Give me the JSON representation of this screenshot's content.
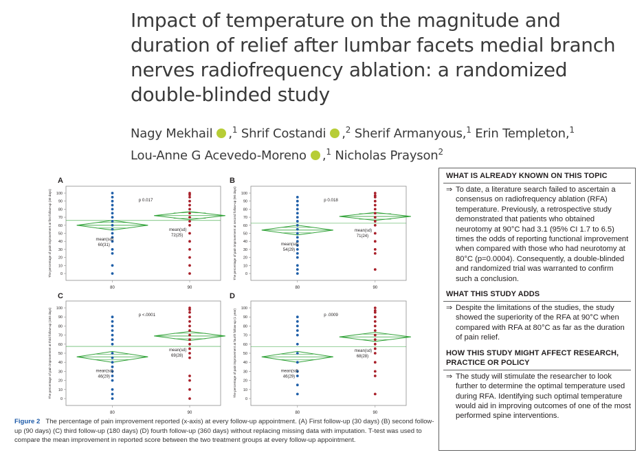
{
  "title": {
    "lines": [
      "Impact of temperature on the magnitude and",
      "duration of relief after lumbar facets medial branch",
      "nerves radiofrequency ablation: a randomized",
      "double-blinded study"
    ]
  },
  "authors": {
    "a1": "Nagy Mekhail",
    "a1_aff": "1",
    "a2": "Shrif Costandi",
    "a2_aff": "2",
    "a3": "Sherif Armanyous,",
    "a3_aff": "1",
    "a4": "Erin Templeton,",
    "a4_aff": "1",
    "a5": "Lou-Anne G Acevedo-Moreno",
    "a5_aff": "1",
    "a6": "Nicholas Prayson",
    "a6_aff": "2",
    "sep": ","
  },
  "chart_data": [
    {
      "panel": "A",
      "type": "scatter",
      "ylabel": "The percentage of pain improvement at first follow-up (30 days)",
      "categories": [
        "80",
        "90"
      ],
      "ylim": [
        0,
        100
      ],
      "yticks": [
        "0",
        "10",
        "20",
        "30",
        "40",
        "50",
        "60",
        "70",
        "80",
        "90",
        "100"
      ],
      "pvalue": "p 0.017",
      "groups": [
        {
          "name": "80",
          "color": "#1f5fa8",
          "mean": 60,
          "ci": [
            54,
            66
          ],
          "label_head": "mean(sd)",
          "label_val": "60(31)",
          "points": [
            100,
            95,
            90,
            85,
            80,
            75,
            70,
            65,
            60,
            55,
            50,
            45,
            40,
            30,
            25,
            10,
            0
          ]
        },
        {
          "name": "90",
          "color": "#a8202a",
          "mean": 72,
          "ci": [
            67,
            77
          ],
          "label_head": "mean(sd)",
          "label_val": "72(25)",
          "points": [
            100,
            98,
            95,
            90,
            85,
            80,
            75,
            70,
            65,
            60,
            50,
            40,
            30,
            20,
            10,
            0
          ]
        }
      ]
    },
    {
      "panel": "B",
      "type": "scatter",
      "ylabel": "The percentage of pain improvement at second follow-up (90 days)",
      "categories": [
        "80",
        "90"
      ],
      "ylim": [
        0,
        100
      ],
      "yticks": [
        "0",
        "10",
        "20",
        "30",
        "40",
        "50",
        "60",
        "70",
        "80",
        "90",
        "100"
      ],
      "pvalue": "p 0.018",
      "groups": [
        {
          "name": "80",
          "color": "#1f5fa8",
          "mean": 54,
          "ci": [
            48,
            60
          ],
          "label_head": "mean(sd)",
          "label_val": "54(29)",
          "points": [
            95,
            90,
            85,
            80,
            75,
            70,
            65,
            60,
            55,
            50,
            45,
            40,
            35,
            30,
            25,
            20,
            10,
            5,
            0
          ]
        },
        {
          "name": "90",
          "color": "#a8202a",
          "mean": 71,
          "ci": [
            66,
            76
          ],
          "label_head": "mean(sd)",
          "label_val": "71(24)",
          "points": [
            100,
            97,
            95,
            90,
            85,
            80,
            75,
            70,
            65,
            60,
            50,
            40,
            30,
            25,
            5
          ]
        }
      ]
    },
    {
      "panel": "C",
      "type": "scatter",
      "ylabel": "The percentage of pain improvement at third follow-up (180 days)",
      "categories": [
        "80",
        "90"
      ],
      "ylim": [
        0,
        100
      ],
      "yticks": [
        "0",
        "10",
        "20",
        "30",
        "40",
        "50",
        "60",
        "70",
        "80",
        "90",
        "100"
      ],
      "pvalue": "p <.0001",
      "groups": [
        {
          "name": "80",
          "color": "#1f5fa8",
          "mean": 46,
          "ci": [
            40,
            52
          ],
          "label_head": "mean(sd)",
          "label_val": "46(29)",
          "points": [
            90,
            85,
            80,
            75,
            70,
            65,
            60,
            50,
            45,
            40,
            35,
            30,
            25,
            20,
            10,
            5,
            0
          ]
        },
        {
          "name": "90",
          "color": "#a8202a",
          "mean": 69,
          "ci": [
            64,
            74
          ],
          "label_head": "mean(sd)",
          "label_val": "69(28)",
          "points": [
            100,
            98,
            95,
            90,
            85,
            80,
            75,
            70,
            65,
            60,
            55,
            50,
            45,
            25,
            20,
            10,
            0
          ]
        }
      ]
    },
    {
      "panel": "D",
      "type": "scatter",
      "ylabel": "The percentage of pain improvement at fourth follow-up (1 year)",
      "categories": [
        "80",
        "90"
      ],
      "ylim": [
        0,
        100
      ],
      "yticks": [
        "0",
        "10",
        "20",
        "30",
        "40",
        "50",
        "60",
        "70",
        "80",
        "90",
        "100"
      ],
      "pvalue": "p .0009",
      "groups": [
        {
          "name": "80",
          "color": "#1f5fa8",
          "mean": 46,
          "ci": [
            40,
            52
          ],
          "label_head": "mean(sd)",
          "label_val": "46(29)",
          "points": [
            90,
            85,
            80,
            75,
            70,
            60,
            50,
            40,
            30,
            25,
            15,
            5
          ]
        },
        {
          "name": "90",
          "color": "#a8202a",
          "mean": 68,
          "ci": [
            63,
            73
          ],
          "label_head": "mean(sd)",
          "label_val": "68(28)",
          "points": [
            100,
            97,
            95,
            90,
            85,
            80,
            75,
            70,
            65,
            60,
            55,
            50,
            40,
            30,
            25,
            5
          ]
        }
      ]
    }
  ],
  "caption": {
    "label": "Figure 2",
    "text": "The percentage of pain improvement reported (x-axis) at every follow-up appointment. (A) First follow-up (30 days) (B) second follow-up (90 days) (C) third follow-up (180 days) (D) fourth follow-up (360 days) without replacing missing data with imputation. T-test was used to compare the mean improvement in reported score between the two treatment groups at every follow-up appointment."
  },
  "box": {
    "arrow": "⇒",
    "known_heading": "WHAT IS ALREADY KNOWN ON THIS TOPIC",
    "known_text": "To date, a literature search failed to ascertain a consensus on radiofrequency ablation (RFA) temperature. Previously, a retrospective study demonstrated that patients who obtained neurotomy at 90°C had 3.1 (95% CI 1.7 to 6.5) times the odds of reporting functional improvement when compared with those who had neurotomy at 80°C (p=0.0004). Consequently, a double-blinded and randomized trial was warranted to confirm such a conclusion.",
    "adds_heading": "WHAT THIS STUDY ADDS",
    "adds_text": "Despite the limitations of the studies, the study showed the superiority of the RFA at 90°C when compared with RFA at 80°C as far as the duration of pain relief.",
    "affect_heading": "HOW THIS STUDY MIGHT AFFECT RESEARCH, PRACTICE OR POLICY",
    "affect_text": "The study will stimulate the researcher to look further to determine the optimal temperature used during RFA. Identifying such optimal temperature would aid in improving outcomes of one of the most performed spine interventions."
  }
}
